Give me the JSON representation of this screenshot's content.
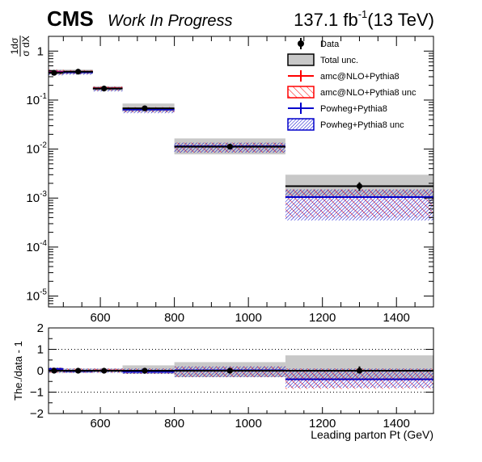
{
  "header": {
    "experiment": "CMS",
    "status": "Work In Progress",
    "lumi_value": "137.1 fb",
    "lumi_exp": "-1",
    "energy": "(13 TeV)"
  },
  "top_panel": {
    "ylabel_num": "1dσ",
    "ylabel_den": "σ dX",
    "yticks": [
      {
        "base": "10",
        "exp": "-5",
        "value": 1e-05
      },
      {
        "base": "10",
        "exp": "-4",
        "value": 0.0001
      },
      {
        "base": "10",
        "exp": "-3",
        "value": 0.001
      },
      {
        "base": "10",
        "exp": "-2",
        "value": 0.01
      },
      {
        "base": "10",
        "exp": "-1",
        "value": 0.1
      },
      {
        "base": "1",
        "exp": "",
        "value": 1
      }
    ]
  },
  "bottom_panel": {
    "ylabel": "The./data - 1",
    "yticks": [
      "−2",
      "−1",
      "0",
      "1",
      "2"
    ],
    "xlabel": "Leading parton Pt (GeV)",
    "xticks": [
      "600",
      "800",
      "1000",
      "1200",
      "1400"
    ]
  },
  "legend": [
    {
      "label": "Data",
      "style": "data"
    },
    {
      "label": "Total unc.",
      "style": "band-gray"
    },
    {
      "label": "amc@NLO+Pythia8",
      "style": "line-red"
    },
    {
      "label": "amc@NLO+Pythia8 unc",
      "style": "hatch-red"
    },
    {
      "label": "Powheg+Pythia8",
      "style": "line-blue"
    },
    {
      "label": "Powheg+Pythia8 unc",
      "style": "hatch-blue"
    }
  ],
  "colors": {
    "data": "#000000",
    "total_unc": "#c8c8c8",
    "amcnlo": "#ff0000",
    "powheg": "#0000cc"
  },
  "chart_data": {
    "type": "line",
    "x_bins": [
      [
        460,
        500
      ],
      [
        500,
        580
      ],
      [
        580,
        660
      ],
      [
        660,
        800
      ],
      [
        800,
        1100
      ],
      [
        1100,
        1500
      ]
    ],
    "x_centers": [
      475,
      540,
      610,
      720,
      950,
      1300
    ],
    "xlim": [
      460,
      1500
    ],
    "top": {
      "yscale": "log",
      "ylim": [
        6e-06,
        2
      ],
      "series": [
        {
          "name": "Data",
          "values": [
            0.36,
            0.38,
            0.172,
            0.068,
            0.0112,
            0.00175
          ],
          "errors": [
            0.03,
            0.03,
            0.01,
            0.004,
            0.0008,
            0.00035
          ]
        },
        {
          "name": "Total unc.",
          "lo": [
            0.33,
            0.34,
            0.155,
            0.058,
            0.0078,
            0.00105
          ],
          "hi": [
            0.42,
            0.42,
            0.192,
            0.085,
            0.0165,
            0.003
          ]
        },
        {
          "name": "amc@NLO+Pythia8",
          "values": [
            0.38,
            0.38,
            0.175,
            0.066,
            0.0113,
            0.00105
          ]
        },
        {
          "name": "amc@NLO+Pythia8 unc",
          "lo": [
            0.33,
            0.34,
            0.155,
            0.056,
            0.0085,
            0.0004
          ],
          "hi": [
            0.42,
            0.41,
            0.19,
            0.072,
            0.0135,
            0.0015
          ]
        },
        {
          "name": "Powheg+Pythia8",
          "values": [
            0.37,
            0.37,
            0.172,
            0.064,
            0.0114,
            0.00105
          ]
        },
        {
          "name": "Powheg+Pythia8 unc",
          "lo": [
            0.32,
            0.33,
            0.15,
            0.054,
            0.0085,
            0.00035
          ],
          "hi": [
            0.41,
            0.4,
            0.185,
            0.07,
            0.0135,
            0.0015
          ]
        }
      ]
    },
    "bottom": {
      "ylim": [
        -2,
        2
      ],
      "reference_lines": [
        -1,
        0,
        1
      ],
      "series": [
        {
          "name": "Data",
          "values": [
            0,
            0,
            0,
            0,
            0,
            0
          ],
          "errors": [
            0.08,
            0.07,
            0.06,
            0.07,
            0.08,
            0.2
          ]
        },
        {
          "name": "Total unc.",
          "lo": [
            -0.1,
            -0.1,
            -0.08,
            -0.15,
            -0.3,
            -0.4
          ],
          "hi": [
            0.15,
            0.1,
            0.1,
            0.25,
            0.4,
            0.72
          ]
        },
        {
          "name": "amc@NLO+Pythia8",
          "values": [
            0.05,
            0.0,
            0.01,
            -0.02,
            0.0,
            -0.4
          ]
        },
        {
          "name": "amc@NLO+Pythia8 unc",
          "lo": [
            -0.1,
            -0.1,
            -0.1,
            -0.15,
            -0.3,
            -0.85
          ],
          "hi": [
            0.15,
            0.1,
            0.1,
            0.1,
            0.2,
            0.1
          ]
        },
        {
          "name": "Powheg+Pythia8",
          "values": [
            0.08,
            -0.02,
            0.0,
            -0.05,
            0.02,
            -0.4
          ]
        },
        {
          "name": "Powheg+Pythia8 unc",
          "lo": [
            -0.1,
            -0.1,
            -0.1,
            -0.15,
            -0.3,
            -0.8
          ],
          "hi": [
            0.15,
            0.1,
            0.1,
            0.1,
            0.2,
            0.1
          ]
        }
      ]
    }
  }
}
